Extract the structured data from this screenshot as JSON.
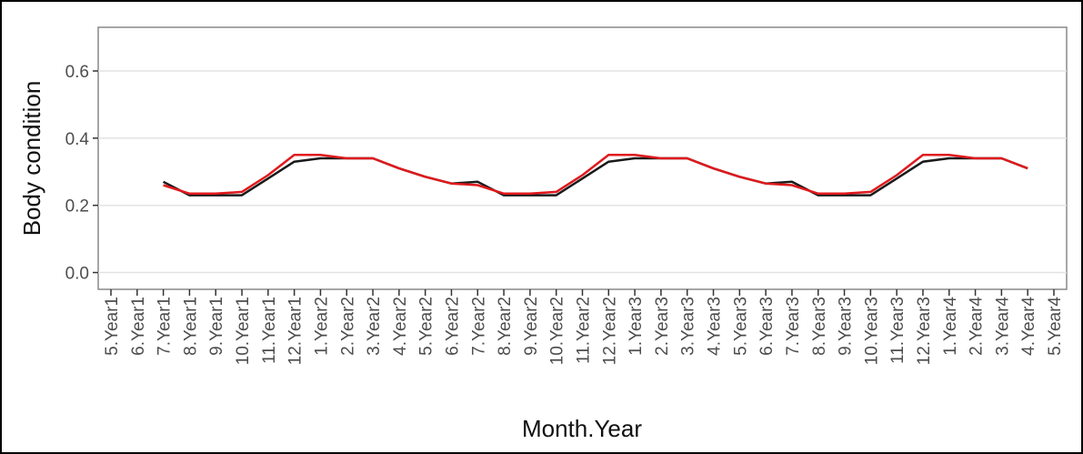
{
  "chart_data": {
    "type": "line",
    "x_label": "Month.Year",
    "y_label": "Body condition",
    "categories": [
      "5.Year1",
      "6.Year1",
      "7.Year1",
      "8.Year1",
      "9.Year1",
      "10.Year1",
      "11.Year1",
      "12.Year1",
      "1.Year2",
      "2.Year2",
      "3.Year2",
      "4.Year2",
      "5.Year2",
      "6.Year2",
      "7.Year2",
      "8.Year2",
      "9.Year2",
      "10.Year2",
      "11.Year2",
      "12.Year2",
      "1.Year3",
      "2.Year3",
      "3.Year3",
      "4.Year3",
      "5.Year3",
      "6.Year3",
      "7.Year3",
      "8.Year3",
      "9.Year3",
      "10.Year3",
      "11.Year3",
      "12.Year3",
      "1.Year4",
      "2.Year4",
      "3.Year4",
      "4.Year4",
      "5.Year4"
    ],
    "series": [
      {
        "color": "#1a1a1a",
        "values": [
          null,
          null,
          0.27,
          0.23,
          0.23,
          0.23,
          0.28,
          0.33,
          0.34,
          0.34,
          0.34,
          0.31,
          0.285,
          0.265,
          0.27,
          0.23,
          0.23,
          0.23,
          0.28,
          0.33,
          0.34,
          0.34,
          0.34,
          0.31,
          0.285,
          0.265,
          0.27,
          0.23,
          0.23,
          0.23,
          0.28,
          0.33,
          0.34,
          0.34,
          0.34,
          0.31,
          null
        ]
      },
      {
        "color": "#e0191c",
        "values": [
          null,
          null,
          0.26,
          0.235,
          0.235,
          0.24,
          0.29,
          0.35,
          0.35,
          0.34,
          0.34,
          0.31,
          0.285,
          0.265,
          0.26,
          0.235,
          0.235,
          0.24,
          0.29,
          0.35,
          0.35,
          0.34,
          0.34,
          0.31,
          0.285,
          0.265,
          0.26,
          0.235,
          0.235,
          0.24,
          0.29,
          0.35,
          0.35,
          0.34,
          0.34,
          0.31,
          null
        ]
      }
    ],
    "ylim": [
      -0.05,
      0.73
    ],
    "yticks": [
      {
        "value": 0,
        "label": "0.0"
      },
      0.2,
      0.4,
      0.6
    ],
    "grid": true
  }
}
